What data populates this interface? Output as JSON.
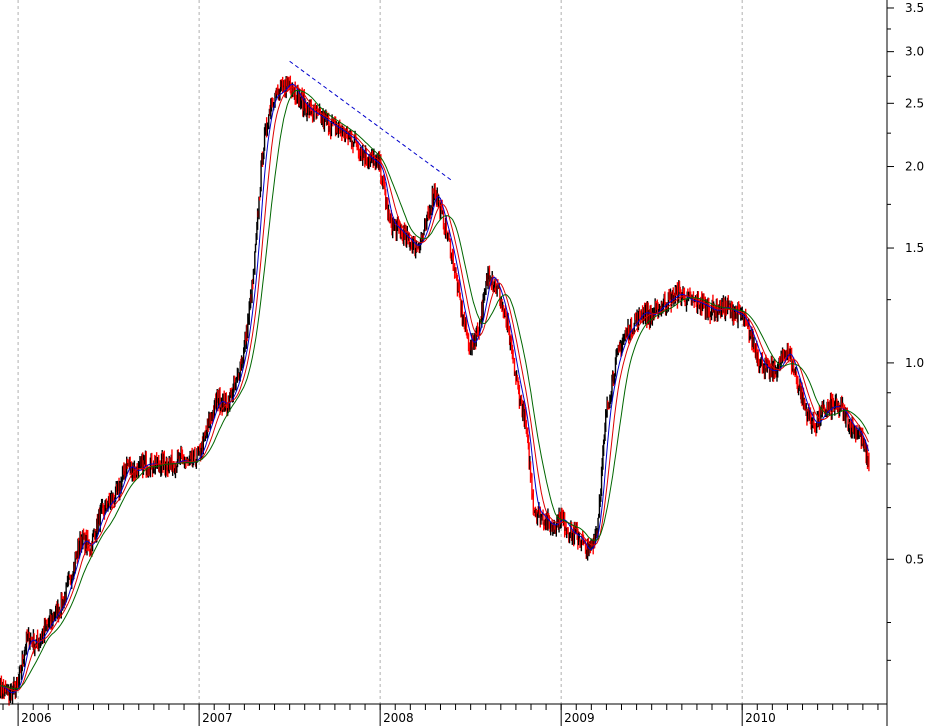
{
  "chart_data": {
    "type": "line",
    "scale": "log",
    "ylim": [
      0.3,
      3.6
    ],
    "xlim": [
      2005.9,
      2010.8
    ],
    "grid": "vertical dashed at year boundaries",
    "y_ticks": [
      {
        "value": 3.5,
        "label": "3.5"
      },
      {
        "value": 3.0,
        "label": "3.0"
      },
      {
        "value": 2.5,
        "label": "2.5"
      },
      {
        "value": 2.0,
        "label": "2.0"
      },
      {
        "value": 1.5,
        "label": "1.5"
      },
      {
        "value": 1.0,
        "label": "1.0"
      },
      {
        "value": 0.5,
        "label": "0.5"
      }
    ],
    "y_minor_ticks": [
      3.25,
      2.75,
      2.25,
      1.75,
      1.25,
      0.9,
      0.8,
      0.7,
      0.6,
      0.4,
      0.35
    ],
    "x_ticks": [
      {
        "value": 2006.0,
        "label": "2006"
      },
      {
        "value": 2007.0,
        "label": "2007"
      },
      {
        "value": 2008.0,
        "label": "2008"
      },
      {
        "value": 2009.0,
        "label": "2009"
      },
      {
        "value": 2010.0,
        "label": "2010"
      }
    ],
    "price": {
      "color": "#000000",
      "down_color": "#ff0000",
      "x": [
        2005.9,
        2005.95,
        2006.0,
        2006.05,
        2006.1,
        2006.15,
        2006.2,
        2006.25,
        2006.3,
        2006.35,
        2006.4,
        2006.45,
        2006.5,
        2006.55,
        2006.6,
        2006.65,
        2006.7,
        2006.75,
        2006.8,
        2006.85,
        2006.9,
        2006.95,
        2007.0,
        2007.05,
        2007.1,
        2007.15,
        2007.2,
        2007.25,
        2007.3,
        2007.35,
        2007.4,
        2007.45,
        2007.5,
        2007.55,
        2007.6,
        2007.65,
        2007.7,
        2007.75,
        2007.8,
        2007.85,
        2007.9,
        2007.95,
        2008.0,
        2008.05,
        2008.1,
        2008.15,
        2008.2,
        2008.25,
        2008.3,
        2008.35,
        2008.4,
        2008.45,
        2008.5,
        2008.55,
        2008.6,
        2008.65,
        2008.7,
        2008.75,
        2008.8,
        2008.85,
        2008.9,
        2008.95,
        2009.0,
        2009.05,
        2009.1,
        2009.15,
        2009.2,
        2009.25,
        2009.3,
        2009.35,
        2009.4,
        2009.45,
        2009.5,
        2009.55,
        2009.6,
        2009.65,
        2009.7,
        2009.75,
        2009.8,
        2009.85,
        2009.9,
        2009.95,
        2010.0,
        2010.05,
        2010.1,
        2010.15,
        2010.2,
        2010.25,
        2010.3,
        2010.35,
        2010.4,
        2010.45,
        2010.5,
        2010.55,
        2010.6,
        2010.65,
        2010.7
      ],
      "y": [
        0.32,
        0.31,
        0.32,
        0.38,
        0.37,
        0.39,
        0.41,
        0.43,
        0.48,
        0.54,
        0.52,
        0.58,
        0.61,
        0.63,
        0.7,
        0.68,
        0.7,
        0.7,
        0.7,
        0.7,
        0.71,
        0.7,
        0.72,
        0.8,
        0.88,
        0.86,
        0.92,
        1.05,
        1.35,
        2.1,
        2.55,
        2.6,
        2.7,
        2.55,
        2.45,
        2.4,
        2.35,
        2.3,
        2.25,
        2.2,
        2.1,
        2.05,
        2.0,
        1.65,
        1.6,
        1.55,
        1.5,
        1.6,
        1.85,
        1.65,
        1.45,
        1.2,
        1.05,
        1.15,
        1.38,
        1.3,
        1.15,
        0.95,
        0.82,
        0.6,
        0.58,
        0.56,
        0.58,
        0.55,
        0.54,
        0.51,
        0.56,
        0.84,
        1.0,
        1.1,
        1.15,
        1.2,
        1.18,
        1.22,
        1.25,
        1.28,
        1.25,
        1.24,
        1.22,
        1.2,
        1.22,
        1.2,
        1.18,
        1.1,
        1.0,
        0.97,
        0.98,
        1.05,
        0.95,
        0.85,
        0.8,
        0.84,
        0.86,
        0.85,
        0.8,
        0.78,
        0.7
      ]
    },
    "moving_averages": [
      {
        "color": "#0000cc",
        "lag": 2
      },
      {
        "color": "#dd0000",
        "lag": 4
      },
      {
        "color": "#006600",
        "lag": 7
      }
    ],
    "trendline": {
      "color": "#0000cc",
      "style": "dashed",
      "x": [
        2007.5,
        2008.4
      ],
      "y": [
        2.9,
        1.9
      ]
    }
  }
}
